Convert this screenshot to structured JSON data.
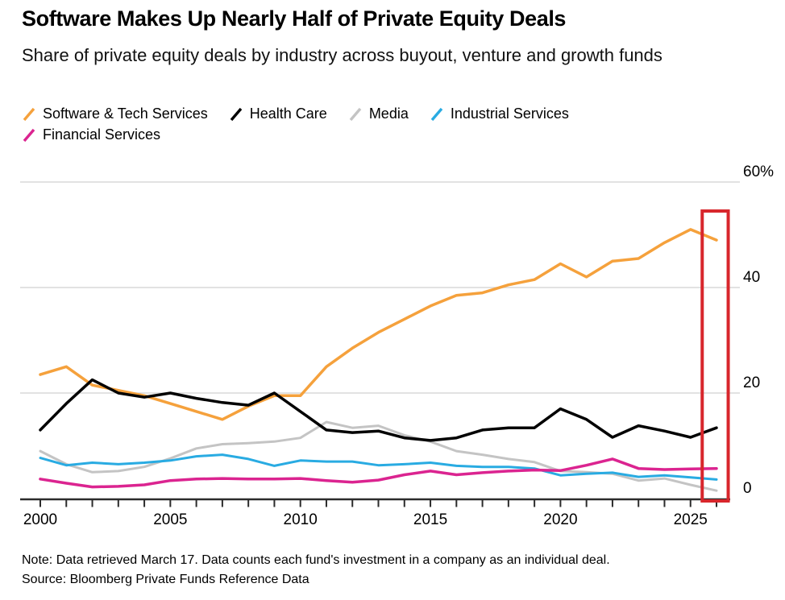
{
  "header": {
    "title": "Software Makes Up Nearly Half of Private Equity Deals",
    "subtitle": "Share of private equity deals by industry across buyout, venture and growth funds"
  },
  "legend": {
    "rows": [
      [
        {
          "label": "Software & Tech Services",
          "color": "#f5a13c"
        },
        {
          "label": "Health Care",
          "color": "#000000"
        },
        {
          "label": "Media",
          "color": "#c4c4c4"
        },
        {
          "label": "Industrial Services",
          "color": "#29abe2"
        }
      ],
      [
        {
          "label": "Financial Services",
          "color": "#db2490"
        }
      ]
    ]
  },
  "chart_data": {
    "type": "line",
    "title": "Software Makes Up Nearly Half of Private Equity Deals",
    "subtitle": "Share of private equity deals by industry across buyout, venture and growth funds",
    "unit": "%",
    "grid": true,
    "legend_position": "top",
    "ylim": [
      0,
      60
    ],
    "x": [
      2000,
      2001,
      2002,
      2003,
      2004,
      2005,
      2006,
      2007,
      2008,
      2009,
      2010,
      2011,
      2012,
      2013,
      2014,
      2015,
      2016,
      2017,
      2018,
      2019,
      2020,
      2021,
      2022,
      2023,
      2024,
      2025,
      2026
    ],
    "x_tick_labels": [
      "2000",
      "2005",
      "2010",
      "2015",
      "2020",
      "2025"
    ],
    "x_tick_values": [
      2000,
      2005,
      2010,
      2015,
      2020,
      2025
    ],
    "y_ticks": [
      {
        "value": 0,
        "label": "0"
      },
      {
        "value": 20,
        "label": "20"
      },
      {
        "value": 40,
        "label": "40"
      },
      {
        "value": 60,
        "label": "60%"
      }
    ],
    "series": [
      {
        "name": "Software & Tech Services",
        "color": "#f5a13c",
        "width": 3.5,
        "values": [
          23.5,
          25,
          21.5,
          20.5,
          19.5,
          18,
          16.5,
          15,
          17.5,
          19.5,
          19.5,
          25,
          28.5,
          31.5,
          34,
          36.5,
          38.5,
          39,
          40.5,
          41.5,
          44.5,
          42,
          45,
          45.5,
          48.5,
          51,
          49
        ]
      },
      {
        "name": "Health Care",
        "color": "#000000",
        "width": 3.5,
        "values": [
          13,
          18,
          22.5,
          20,
          19.2,
          20,
          19,
          18.2,
          17.7,
          20,
          16.5,
          13,
          12.5,
          12.8,
          11.5,
          11,
          11.5,
          13,
          13.4,
          13.4,
          17,
          15,
          11.6,
          13.8,
          12.8,
          11.6,
          13.4
        ]
      },
      {
        "name": "Media",
        "color": "#c4c4c4",
        "width": 3,
        "values": [
          9,
          6.5,
          5,
          5.2,
          6,
          7.6,
          9.5,
          10.3,
          10.5,
          10.8,
          11.5,
          14.5,
          13.4,
          13.8,
          12,
          10.8,
          9,
          8.3,
          7.5,
          6.9,
          5.2,
          5,
          4.7,
          3.4,
          3.8,
          2.6,
          1.5
        ]
      },
      {
        "name": "Industrial Services",
        "color": "#29abe2",
        "width": 3,
        "values": [
          7.7,
          6.3,
          6.8,
          6.5,
          6.8,
          7.2,
          8,
          8.3,
          7.5,
          6.2,
          7.2,
          7,
          7,
          6.3,
          6.5,
          6.8,
          6.2,
          6,
          6,
          5.7,
          4.4,
          4.7,
          4.9,
          4.1,
          4.4,
          4,
          3.6
        ]
      },
      {
        "name": "Financial Services",
        "color": "#db2490",
        "width": 3.5,
        "values": [
          3.7,
          2.9,
          2.2,
          2.3,
          2.6,
          3.4,
          3.7,
          3.8,
          3.7,
          3.7,
          3.8,
          3.4,
          3.1,
          3.5,
          4.5,
          5.2,
          4.5,
          4.9,
          5.2,
          5.4,
          5.3,
          6.3,
          7.5,
          5.7,
          5.5,
          5.6,
          5.7
        ]
      }
    ],
    "draw_order": [
      2,
      3,
      4,
      0,
      1
    ],
    "highlight_box": {
      "x_start": 2025.45,
      "x_end": 2026.45,
      "y_top": 54.5,
      "color": "#d8262c"
    },
    "axis_color": "#2b2b2b",
    "grid_color": "#d8d8d8"
  },
  "footer": {
    "note": "Note: Data retrieved March 17. Data counts each fund's investment in a company as an individual deal.",
    "source": "Source: Bloomberg Private Funds Reference Data"
  }
}
